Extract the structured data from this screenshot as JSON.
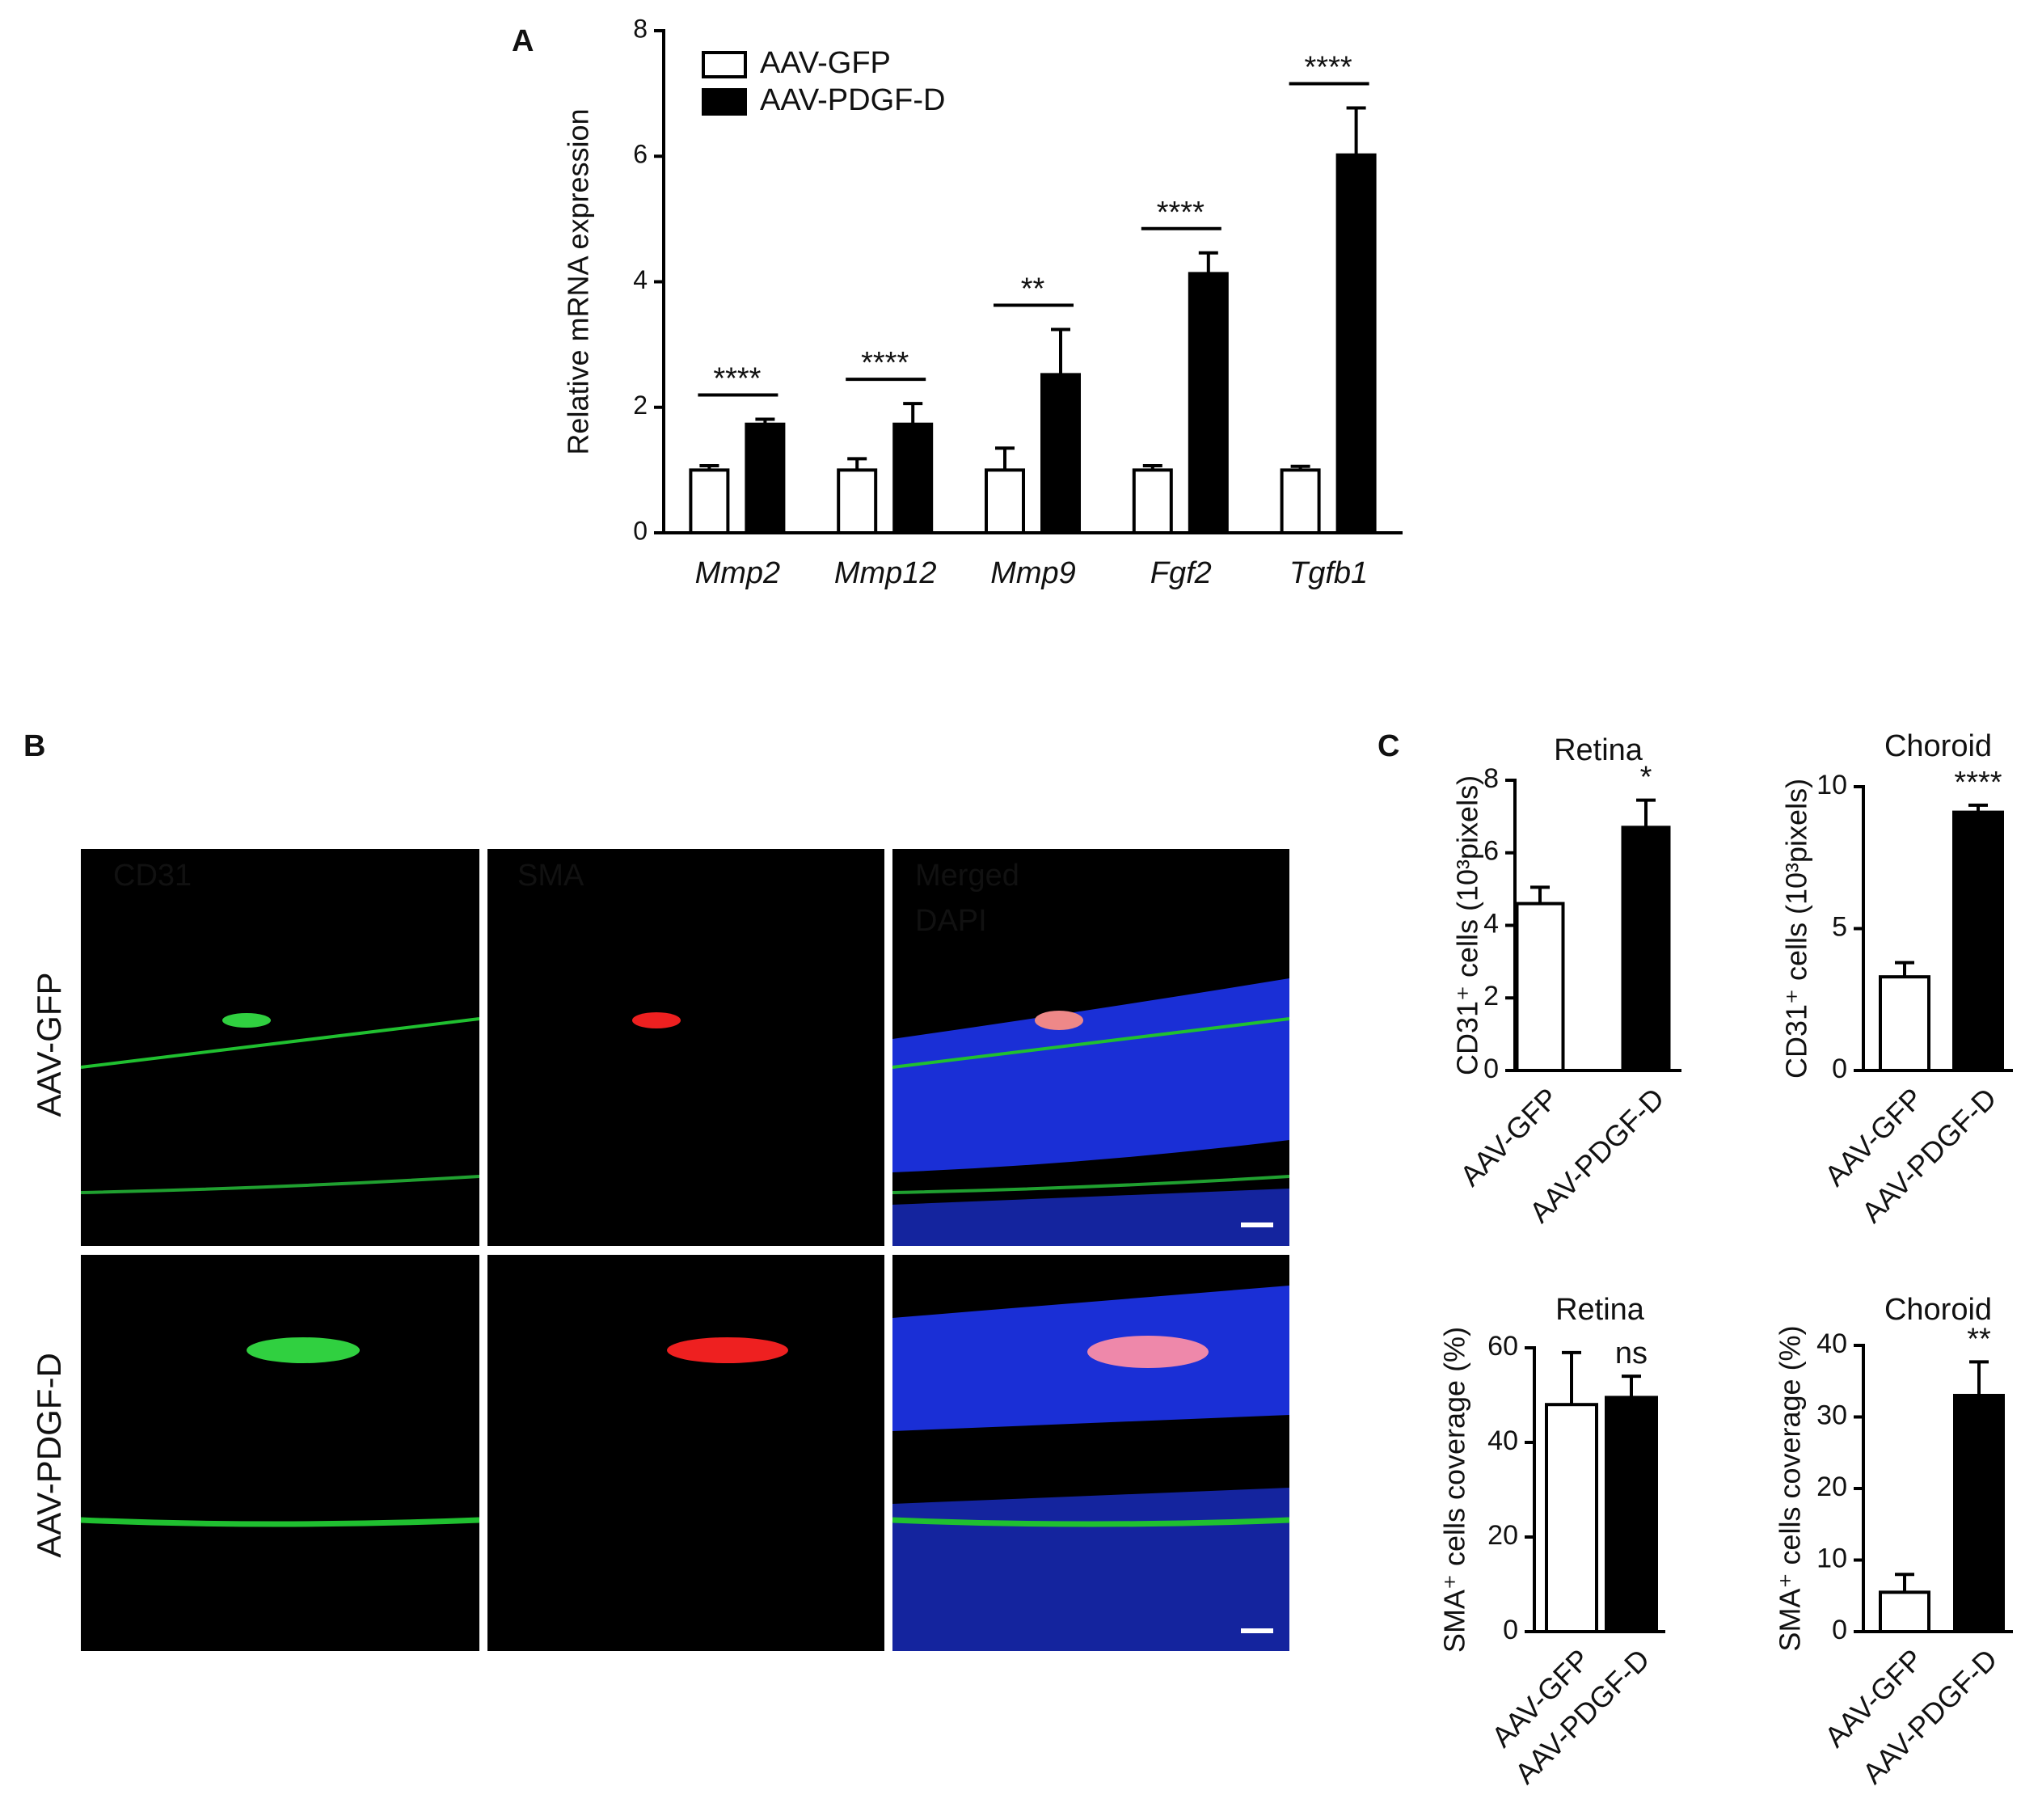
{
  "panel_labels": [
    "A",
    "B",
    "C"
  ],
  "micrographs": {
    "rows": [
      "AAV-GFP",
      "AAV-PDGF-D"
    ],
    "channels": [
      {
        "label": "CD31",
        "color": "#22cc33"
      },
      {
        "label": "SMA",
        "color": "#ee2222"
      },
      {
        "label": "Merged",
        "color": "#eeee22"
      },
      {
        "label": "DAPI",
        "color": "#3377ee"
      }
    ]
  },
  "chart_data": [
    {
      "type": "bar",
      "ylabel": "Relative mRNA expression",
      "categories": [
        "Mmp2",
        "Mmp12",
        "Mmp9",
        "Fgf2",
        "Tgfb1"
      ],
      "series": [
        {
          "name": "AAV-GFP",
          "color": "#ffffff",
          "values": [
            1,
            1,
            1,
            1,
            1
          ],
          "errors": [
            0.07,
            0.18,
            0.35,
            0.07,
            0.06
          ]
        },
        {
          "name": "AAV-PDGF-D",
          "color": "#000000",
          "values": [
            1.73,
            1.73,
            2.52,
            4.13,
            6.02
          ],
          "errors": [
            0.08,
            0.33,
            0.72,
            0.33,
            0.75
          ]
        }
      ],
      "annotations": [
        "****",
        "****",
        "**",
        "****",
        "****"
      ],
      "ylim": [
        0,
        8
      ],
      "yticks": [
        0,
        2,
        4,
        6,
        8
      ],
      "legend": "top-left"
    },
    {
      "type": "bar",
      "title": "Retina",
      "ylabel": "CD31⁺ cells (10³pixels)",
      "categories": [
        "AAV-GFP",
        "AAV-PDGF-D"
      ],
      "colors": [
        "#ffffff",
        "#000000"
      ],
      "values": [
        4.6,
        6.7
      ],
      "errors": [
        0.45,
        0.75
      ],
      "annotation": "*",
      "ylim": [
        0,
        8
      ],
      "yticks": [
        0,
        2,
        4,
        6,
        8
      ]
    },
    {
      "type": "bar",
      "title": "Choroid",
      "ylabel": "CD31⁺ cells (10³pixels)",
      "categories": [
        "AAV-GFP",
        "AAV-PDGF-D"
      ],
      "colors": [
        "#ffffff",
        "#000000"
      ],
      "values": [
        3.3,
        9.1
      ],
      "errors": [
        0.5,
        0.25
      ],
      "annotation": "****",
      "ylim": [
        0,
        10
      ],
      "yticks": [
        0,
        5,
        10
      ]
    },
    {
      "type": "bar",
      "title": "Retina",
      "ylabel": "SMA⁺ cells coverage (%)",
      "categories": [
        "AAV-GFP",
        "AAV-PDGF-D"
      ],
      "colors": [
        "#ffffff",
        "#000000"
      ],
      "values": [
        48,
        49.5
      ],
      "errors": [
        11,
        4.5
      ],
      "annotation": "ns",
      "ylim": [
        0,
        60
      ],
      "yticks": [
        0,
        20,
        40,
        60
      ]
    },
    {
      "type": "bar",
      "title": "Choroid",
      "ylabel": "SMA⁺ cells coverage (%)",
      "categories": [
        "AAV-GFP",
        "AAV-PDGF-D"
      ],
      "colors": [
        "#ffffff",
        "#000000"
      ],
      "values": [
        5.5,
        33
      ],
      "errors": [
        2.5,
        4.7
      ],
      "annotation": "**",
      "ylim": [
        0,
        40
      ],
      "yticks": [
        0,
        10,
        20,
        30,
        40
      ]
    }
  ]
}
